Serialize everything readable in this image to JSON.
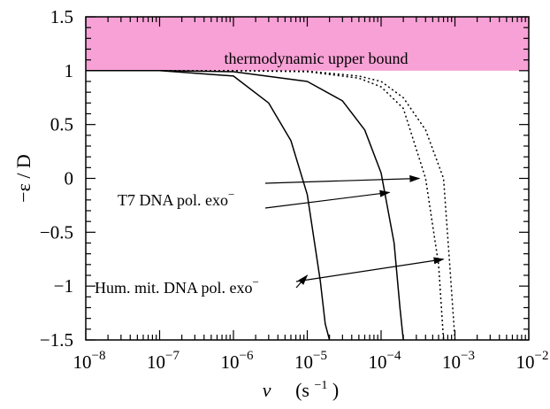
{
  "chart_data": {
    "type": "line",
    "xscale": "log",
    "xlim": [
      1e-08,
      0.01
    ],
    "ylim": [
      -1.5,
      1.5
    ],
    "xticks": [
      1e-08,
      1e-07,
      1e-06,
      1e-05,
      0.0001,
      0.001,
      0.01
    ],
    "xtick_exponents": [
      "−8",
      "−7",
      "−6",
      "−5",
      "−4",
      "−3",
      "−2"
    ],
    "xtick_base": "10",
    "yticks": [
      1.5,
      1,
      0.5,
      0,
      -0.5,
      -1,
      -1.5
    ],
    "ytick_labels": [
      "1.5",
      "1",
      "0.5",
      "0",
      "−0.5",
      "−1",
      "−1.5"
    ],
    "xlabel": {
      "var": "v",
      "unit_open": "(s",
      "unit_exp": "−1",
      "unit_close": ")"
    },
    "ylabel": "−ε / D",
    "grid": false,
    "shaded_region": {
      "y_from": 1,
      "y_to": 1.5,
      "label": "thermodynamic upper bound",
      "color": "#f7a1d6"
    },
    "series": [
      {
        "style": "solid",
        "x": [
          1e-08,
          1e-07,
          1e-06,
          3e-06,
          6e-06,
          1e-05,
          1.5e-05,
          1.75e-05,
          2e-05
        ],
        "y": [
          1.0,
          1.0,
          0.95,
          0.7,
          0.35,
          -0.15,
          -0.95,
          -1.35,
          -1.5
        ]
      },
      {
        "style": "solid",
        "x": [
          1e-08,
          1e-07,
          1e-06,
          1e-05,
          3e-05,
          6e-05,
          0.0001,
          0.00015,
          0.00018,
          0.0002
        ],
        "y": [
          1.0,
          1.0,
          0.99,
          0.9,
          0.72,
          0.45,
          0.05,
          -0.6,
          -1.2,
          -1.5
        ]
      },
      {
        "style": "dotted",
        "x": [
          1e-08,
          1e-07,
          1e-06,
          1e-05,
          5e-05,
          0.0001,
          0.0002,
          0.0004,
          0.0006,
          0.0007
        ],
        "y": [
          1.0,
          1.0,
          1.0,
          0.99,
          0.93,
          0.85,
          0.65,
          0.0,
          -0.8,
          -1.5
        ]
      },
      {
        "style": "dotted",
        "x": [
          1e-08,
          1e-07,
          1e-06,
          1e-05,
          5e-05,
          0.0001,
          0.0002,
          0.0004,
          0.0007,
          0.00085,
          0.001
        ],
        "y": [
          1.0,
          1.0,
          1.0,
          0.995,
          0.95,
          0.9,
          0.75,
          0.45,
          0.0,
          -0.8,
          -1.5
        ]
      }
    ],
    "annotations": [
      {
        "text": "T7 DNA pol. exo",
        "sup": "−",
        "arrows": [
          {
            "x": 0.00033,
            "y": 0.0
          },
          {
            "x": 0.00013,
            "y": -0.13
          }
        ]
      },
      {
        "text": "Hum. mit. DNA pol. exo",
        "sup": "−",
        "arrows": [
          {
            "x": 0.0007,
            "y": -0.75
          },
          {
            "x": 1e-05,
            "y": -0.9
          }
        ]
      }
    ]
  }
}
